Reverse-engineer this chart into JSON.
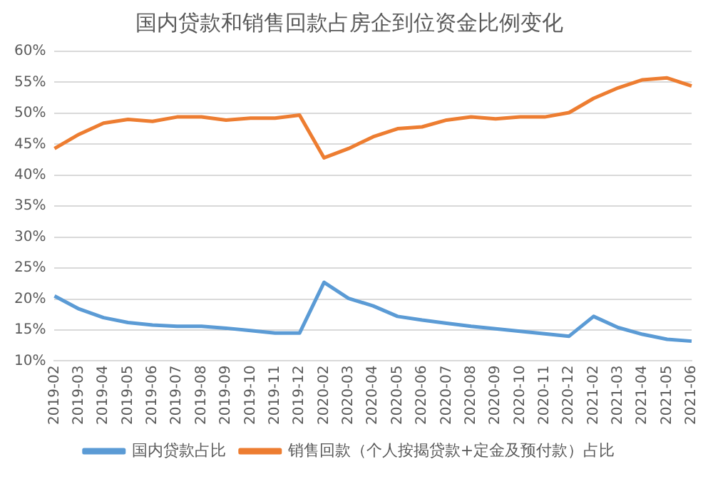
{
  "chart_data": {
    "type": "line",
    "title": "国内贷款和销售回款占房企到位资金比例变化",
    "categories": [
      "2019-02",
      "2019-03",
      "2019-04",
      "2019-05",
      "2019-06",
      "2019-07",
      "2019-08",
      "2019-09",
      "2019-10",
      "2019-11",
      "2019-12",
      "2020-02",
      "2020-03",
      "2020-04",
      "2020-05",
      "2020-06",
      "2020-07",
      "2020-08",
      "2020-09",
      "2020-10",
      "2020-11",
      "2020-12",
      "2021-02",
      "2021-03",
      "2021-04",
      "2021-05",
      "2021-06"
    ],
    "series": [
      {
        "name": "国内贷款占比",
        "color": "#5b9bd5",
        "values": [
          20.5,
          18.4,
          17.0,
          16.2,
          15.8,
          15.6,
          15.6,
          15.3,
          14.9,
          14.5,
          14.5,
          22.7,
          20.1,
          18.9,
          17.2,
          16.6,
          16.1,
          15.6,
          15.2,
          14.8,
          14.4,
          14.0,
          17.2,
          15.4,
          14.3,
          13.5,
          13.2
        ]
      },
      {
        "name": "销售回款（个人按揭贷款+定金及预付款）占比",
        "color": "#ed7d31",
        "values": [
          44.3,
          46.6,
          48.4,
          49.0,
          48.7,
          49.4,
          49.4,
          48.9,
          49.2,
          49.2,
          49.7,
          42.8,
          44.3,
          46.2,
          47.5,
          47.8,
          48.9,
          49.4,
          49.1,
          49.4,
          49.4,
          50.1,
          52.4,
          54.1,
          55.4,
          55.7,
          54.4
        ]
      }
    ],
    "ylim": [
      10,
      60
    ],
    "yticks": [
      {
        "value": 10,
        "label": "10%"
      },
      {
        "value": 15,
        "label": "15%"
      },
      {
        "value": 20,
        "label": "20%"
      },
      {
        "value": 25,
        "label": "25%"
      },
      {
        "value": 30,
        "label": "30%"
      },
      {
        "value": 35,
        "label": "35%"
      },
      {
        "value": 40,
        "label": "40%"
      },
      {
        "value": 45,
        "label": "45%"
      },
      {
        "value": 50,
        "label": "50%"
      },
      {
        "value": 55,
        "label": "55%"
      },
      {
        "value": 60,
        "label": "60%"
      }
    ],
    "grid": "y",
    "legend": "bottom",
    "marker": "none",
    "line_style": "solid"
  }
}
